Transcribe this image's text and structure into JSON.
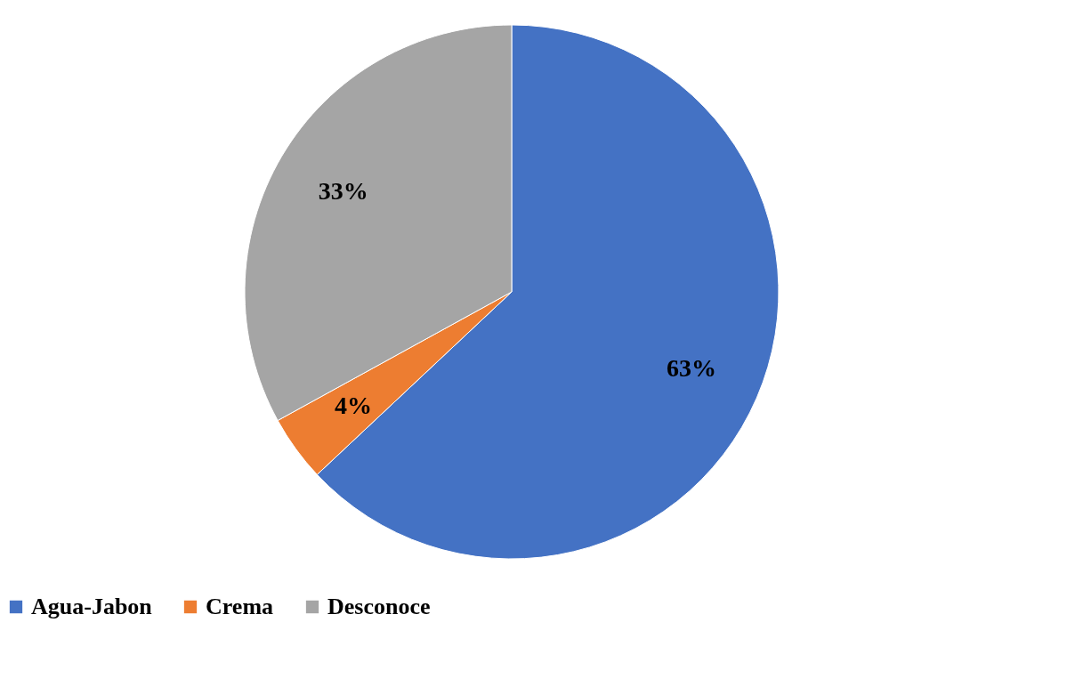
{
  "chart_data": {
    "type": "pie",
    "categories": [
      "Agua-Jabon",
      "Crema",
      "Desconoce"
    ],
    "values": [
      63,
      4,
      33
    ],
    "colors": [
      "#4472c4",
      "#ed7d31",
      "#a5a5a5"
    ],
    "value_labels": [
      "63%",
      "4%",
      "33%"
    ],
    "legend": "bottom"
  }
}
